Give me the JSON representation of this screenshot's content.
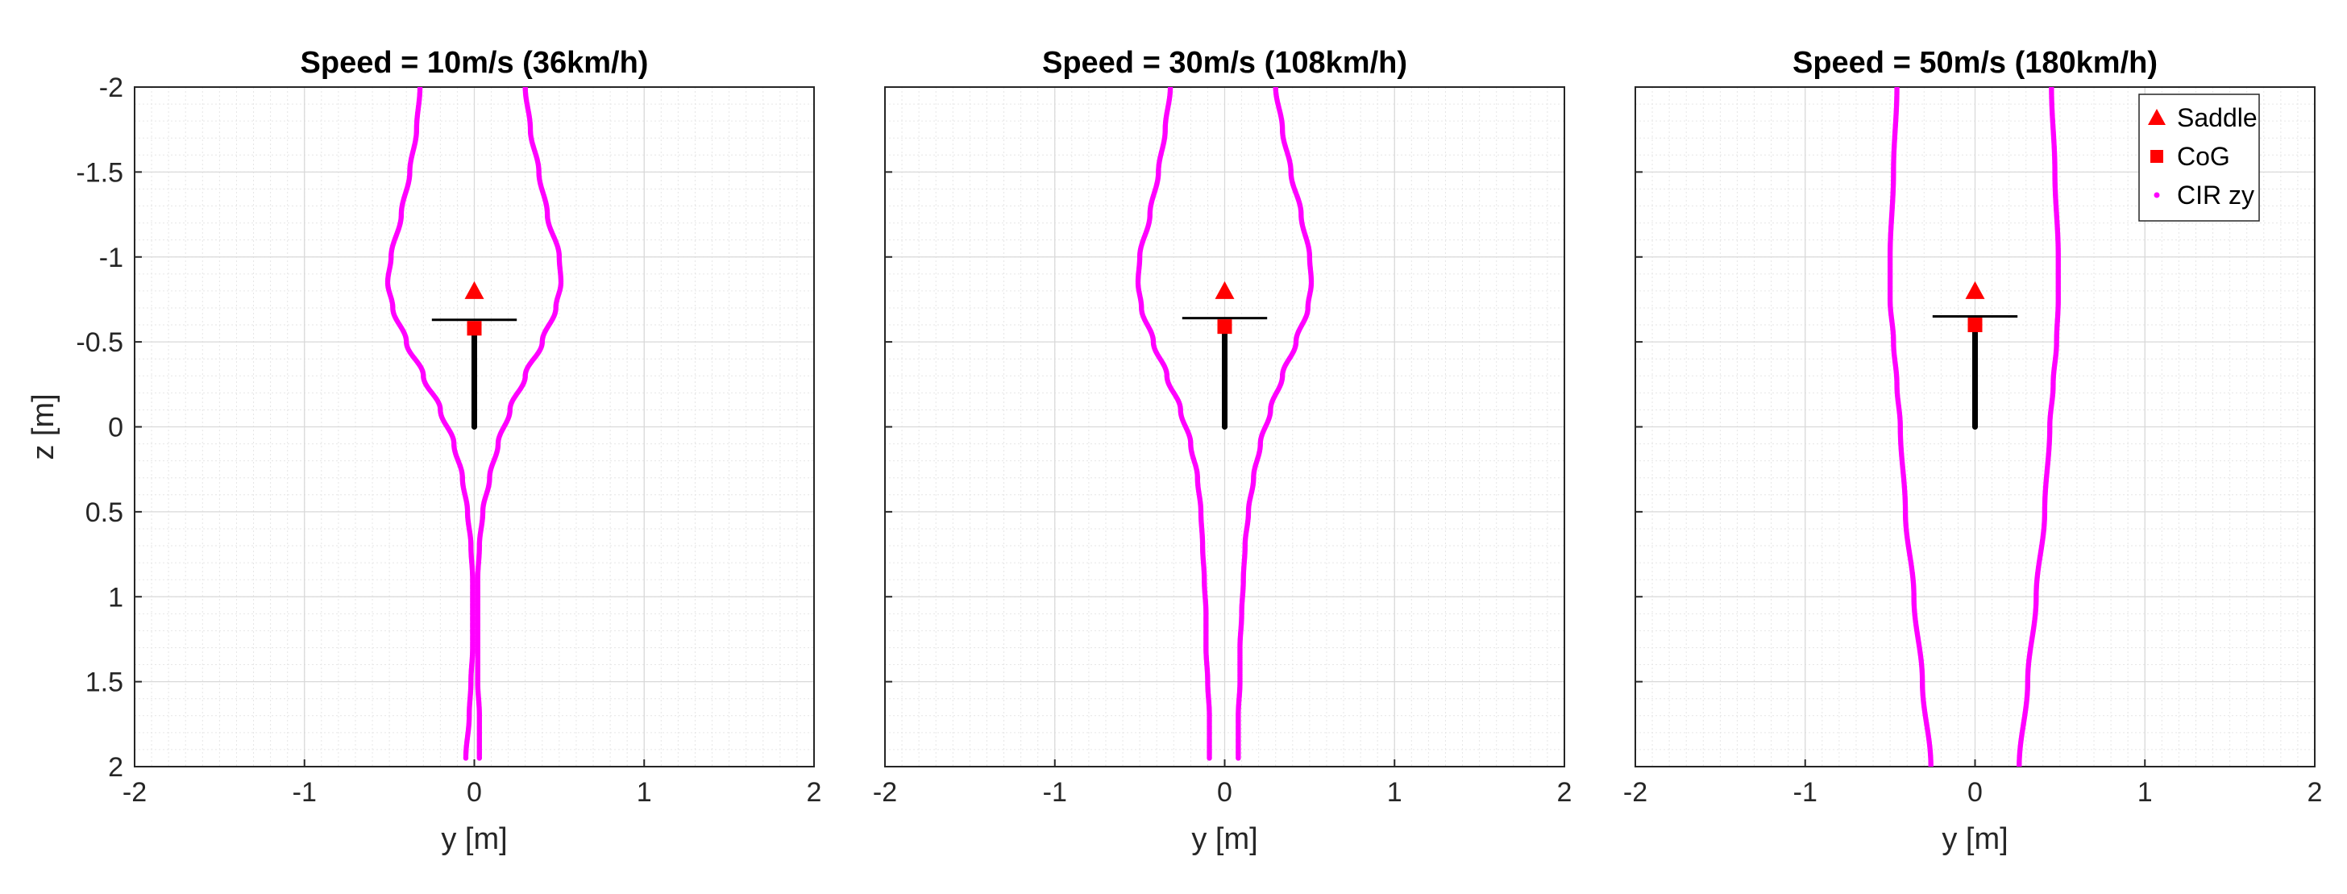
{
  "figure": {
    "legend": {
      "entries": [
        {
          "label": "Saddle",
          "marker": "triangle",
          "color": "#ff0000"
        },
        {
          "label": "CoG",
          "marker": "square",
          "color": "#ff0000"
        },
        {
          "label": "CIR zy",
          "marker": "dot",
          "color": "#ff00ff"
        }
      ],
      "location": "top-right of third panel"
    },
    "colors": {
      "cir": "#ff00ff",
      "marker": "#ff0000",
      "bike": "#000000",
      "grid": "#dedede"
    }
  },
  "chart_data": [
    {
      "type": "scatter",
      "title": "Speed = 10m/s (36km/h)",
      "xlabel": "y [m]",
      "ylabel": "z [m]",
      "xlim": [
        -2,
        2
      ],
      "ylim": [
        -2,
        2
      ],
      "y_axis_reversed": true,
      "grid": "major and minor",
      "xticks": [
        "-2",
        "-1",
        "0",
        "1",
        "2"
      ],
      "yticks": [
        "-2",
        "-1.5",
        "-1",
        "-0.5",
        "0",
        "0.5",
        "1",
        "1.5",
        "2"
      ],
      "saddle": {
        "y": 0,
        "z": -0.8
      },
      "cog": {
        "y": 0,
        "z": -0.58
      },
      "handlebar": {
        "y": [
          -0.25,
          0.25
        ],
        "z": -0.63
      },
      "frame": {
        "y": 0,
        "z": [
          -0.58,
          0
        ]
      },
      "cir_right": [
        [
          0.3,
          -2
        ],
        [
          0.33,
          -1.75
        ],
        [
          0.38,
          -1.5
        ],
        [
          0.43,
          -1.25
        ],
        [
          0.5,
          -1.0
        ],
        [
          0.51,
          -0.85
        ],
        [
          0.48,
          -0.7
        ],
        [
          0.4,
          -0.5
        ],
        [
          0.3,
          -0.3
        ],
        [
          0.21,
          -0.1
        ],
        [
          0.14,
          0.1
        ],
        [
          0.09,
          0.3
        ],
        [
          0.05,
          0.5
        ],
        [
          0.03,
          0.7
        ],
        [
          0.02,
          0.9
        ],
        [
          0.02,
          1.1
        ],
        [
          0.02,
          1.3
        ],
        [
          0.02,
          1.5
        ],
        [
          0.03,
          1.7
        ],
        [
          0.03,
          1.95
        ]
      ],
      "cir_left": [
        [
          -0.32,
          -2
        ],
        [
          -0.34,
          -1.75
        ],
        [
          -0.38,
          -1.5
        ],
        [
          -0.43,
          -1.25
        ],
        [
          -0.49,
          -1.0
        ],
        [
          -0.51,
          -0.85
        ],
        [
          -0.48,
          -0.7
        ],
        [
          -0.4,
          -0.5
        ],
        [
          -0.3,
          -0.3
        ],
        [
          -0.2,
          -0.1
        ],
        [
          -0.12,
          0.1
        ],
        [
          -0.07,
          0.3
        ],
        [
          -0.04,
          0.5
        ],
        [
          -0.02,
          0.7
        ],
        [
          -0.01,
          0.9
        ],
        [
          -0.01,
          1.1
        ],
        [
          -0.01,
          1.3
        ],
        [
          -0.02,
          1.5
        ],
        [
          -0.03,
          1.7
        ],
        [
          -0.05,
          1.95
        ]
      ]
    },
    {
      "type": "scatter",
      "title": "Speed = 30m/s (108km/h)",
      "xlabel": "y [m]",
      "ylabel": "",
      "xlim": [
        -2,
        2
      ],
      "ylim": [
        -2,
        2
      ],
      "y_axis_reversed": true,
      "grid": "major and minor",
      "xticks": [
        "-2",
        "-1",
        "0",
        "1",
        "2"
      ],
      "saddle": {
        "y": 0,
        "z": -0.8
      },
      "cog": {
        "y": 0,
        "z": -0.59
      },
      "handlebar": {
        "y": [
          -0.25,
          0.25
        ],
        "z": -0.64
      },
      "frame": {
        "y": 0,
        "z": [
          -0.59,
          0
        ]
      },
      "cir_right": [
        [
          0.3,
          -2
        ],
        [
          0.34,
          -1.75
        ],
        [
          0.39,
          -1.5
        ],
        [
          0.45,
          -1.25
        ],
        [
          0.5,
          -1.0
        ],
        [
          0.51,
          -0.85
        ],
        [
          0.49,
          -0.7
        ],
        [
          0.42,
          -0.5
        ],
        [
          0.34,
          -0.3
        ],
        [
          0.27,
          -0.1
        ],
        [
          0.21,
          0.1
        ],
        [
          0.17,
          0.3
        ],
        [
          0.14,
          0.5
        ],
        [
          0.12,
          0.7
        ],
        [
          0.11,
          0.9
        ],
        [
          0.1,
          1.1
        ],
        [
          0.09,
          1.3
        ],
        [
          0.09,
          1.5
        ],
        [
          0.08,
          1.7
        ],
        [
          0.08,
          1.95
        ]
      ],
      "cir_left": [
        [
          -0.32,
          -2
        ],
        [
          -0.35,
          -1.75
        ],
        [
          -0.39,
          -1.5
        ],
        [
          -0.44,
          -1.25
        ],
        [
          -0.5,
          -1.0
        ],
        [
          -0.51,
          -0.85
        ],
        [
          -0.49,
          -0.7
        ],
        [
          -0.42,
          -0.5
        ],
        [
          -0.34,
          -0.3
        ],
        [
          -0.26,
          -0.1
        ],
        [
          -0.2,
          0.1
        ],
        [
          -0.16,
          0.3
        ],
        [
          -0.14,
          0.5
        ],
        [
          -0.13,
          0.7
        ],
        [
          -0.12,
          0.9
        ],
        [
          -0.11,
          1.1
        ],
        [
          -0.11,
          1.3
        ],
        [
          -0.1,
          1.5
        ],
        [
          -0.09,
          1.7
        ],
        [
          -0.09,
          1.95
        ]
      ]
    },
    {
      "type": "scatter",
      "title": "Speed = 50m/s (180km/h)",
      "xlabel": "y [m]",
      "ylabel": "",
      "xlim": [
        -2,
        2
      ],
      "ylim": [
        -2,
        2
      ],
      "y_axis_reversed": true,
      "grid": "major and minor",
      "xticks": [
        "-2",
        "-1",
        "0",
        "1",
        "2"
      ],
      "saddle": {
        "y": 0,
        "z": -0.8
      },
      "cog": {
        "y": 0,
        "z": -0.6
      },
      "handlebar": {
        "y": [
          -0.25,
          0.25
        ],
        "z": -0.65
      },
      "frame": {
        "y": 0,
        "z": [
          -0.6,
          0
        ]
      },
      "cir_right": [
        [
          0.45,
          -2
        ],
        [
          0.47,
          -1.5
        ],
        [
          0.49,
          -1.0
        ],
        [
          0.49,
          -0.75
        ],
        [
          0.48,
          -0.5
        ],
        [
          0.46,
          -0.25
        ],
        [
          0.44,
          0
        ],
        [
          0.41,
          0.5
        ],
        [
          0.36,
          1.0
        ],
        [
          0.31,
          1.5
        ],
        [
          0.26,
          2
        ]
      ],
      "cir_left": [
        [
          -0.46,
          -2
        ],
        [
          -0.48,
          -1.5
        ],
        [
          -0.5,
          -1.0
        ],
        [
          -0.5,
          -0.75
        ],
        [
          -0.48,
          -0.5
        ],
        [
          -0.46,
          -0.25
        ],
        [
          -0.44,
          0
        ],
        [
          -0.41,
          0.5
        ],
        [
          -0.36,
          1.0
        ],
        [
          -0.31,
          1.5
        ],
        [
          -0.26,
          2
        ]
      ]
    }
  ]
}
